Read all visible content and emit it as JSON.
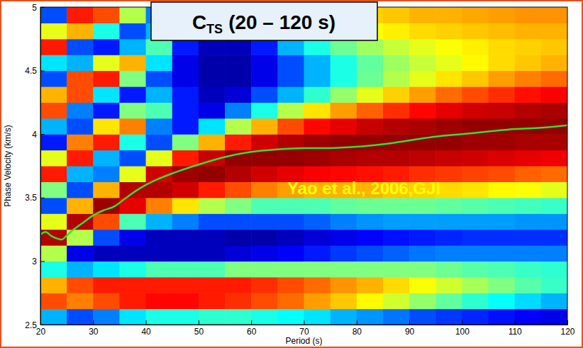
{
  "chart_data": {
    "type": "heatmap",
    "title": {
      "main": "C",
      "subscript": "TS",
      "rest": "(20 – 120 s)"
    },
    "xlabel": "Period (s)",
    "ylabel": "Phase Velocity (km/s)",
    "annotation": "Yao et al., 2006,GJI",
    "xlim": [
      20,
      120
    ],
    "ylim": [
      2.5,
      5
    ],
    "xticks": [
      20,
      30,
      40,
      50,
      60,
      70,
      80,
      90,
      100,
      110,
      120
    ],
    "yticks": [
      2.5,
      3,
      3.5,
      4,
      4.5,
      5
    ],
    "x_bins": [
      20,
      25,
      30,
      35,
      40,
      45,
      50,
      55,
      60,
      65,
      70,
      75,
      80,
      85,
      90,
      95,
      100,
      105,
      110,
      115,
      120
    ],
    "y_bins": [
      2.5,
      2.625,
      2.75,
      2.875,
      3,
      3.125,
      3.25,
      3.375,
      3.5,
      3.625,
      3.75,
      3.875,
      4,
      4.125,
      4.25,
      4.375,
      4.5,
      4.625,
      4.75,
      4.875,
      5
    ],
    "zlim": [
      0,
      1
    ],
    "cells": [
      [
        0.3,
        0.8,
        0.7,
        0.4,
        0.55,
        0.95,
        0.6,
        0.2,
        0.5,
        0.85,
        0.6,
        0.15,
        0.3,
        0.8,
        0.7,
        0.2,
        0.35,
        0.85,
        0.6,
        0.2
      ],
      [
        0.2,
        0.75,
        0.8,
        0.3,
        0.1,
        0.55,
        0.95,
        0.7,
        0.2,
        0.3,
        0.85,
        0.75,
        0.2,
        0.25,
        0.8,
        0.8,
        0.3,
        0.2,
        0.7,
        0.85
      ],
      [
        0.25,
        0.8,
        0.85,
        0.35,
        0.05,
        0.2,
        0.8,
        0.97,
        0.7,
        0.25,
        0.3,
        0.85,
        0.65,
        0.15,
        0.35,
        0.85,
        0.6,
        0.15,
        0.4,
        0.8
      ],
      [
        0.35,
        0.85,
        0.85,
        0.4,
        0.05,
        0.1,
        0.45,
        0.9,
        0.95,
        0.6,
        0.2,
        0.4,
        0.75,
        0.5,
        0.15,
        0.5,
        0.7,
        0.3,
        0.2,
        0.55
      ],
      [
        0.4,
        0.87,
        0.85,
        0.45,
        0.05,
        0.05,
        0.3,
        0.75,
        0.95,
        0.92,
        0.6,
        0.2,
        0.25,
        0.45,
        0.3,
        0.2,
        0.35,
        0.45,
        0.3,
        0.25
      ],
      [
        0.4,
        0.87,
        0.85,
        0.45,
        0.05,
        0.05,
        0.25,
        0.65,
        0.92,
        0.97,
        0.85,
        0.5,
        0.15,
        0.15,
        0.15,
        0.1,
        0.1,
        0.15,
        0.2,
        0.2
      ],
      [
        0.42,
        0.85,
        0.85,
        0.45,
        0.05,
        0.05,
        0.2,
        0.55,
        0.85,
        0.98,
        0.93,
        0.7,
        0.35,
        0.1,
        0.05,
        0.03,
        0.03,
        0.05,
        0.08,
        0.12
      ],
      [
        0.42,
        0.83,
        0.85,
        0.5,
        0.08,
        0.03,
        0.2,
        0.5,
        0.8,
        0.95,
        0.98,
        0.85,
        0.55,
        0.25,
        0.08,
        0.03,
        0.03,
        0.05,
        0.1,
        0.2
      ],
      [
        0.4,
        0.8,
        0.83,
        0.5,
        0.1,
        0.03,
        0.2,
        0.45,
        0.75,
        0.92,
        0.98,
        0.92,
        0.7,
        0.4,
        0.2,
        0.1,
        0.1,
        0.15,
        0.3,
        0.4
      ],
      [
        0.38,
        0.77,
        0.8,
        0.5,
        0.12,
        0.05,
        0.2,
        0.45,
        0.72,
        0.9,
        0.98,
        0.95,
        0.8,
        0.55,
        0.3,
        0.2,
        0.2,
        0.3,
        0.45,
        0.55
      ],
      [
        0.35,
        0.72,
        0.77,
        0.5,
        0.15,
        0.08,
        0.22,
        0.45,
        0.7,
        0.88,
        0.97,
        0.97,
        0.87,
        0.65,
        0.42,
        0.3,
        0.3,
        0.4,
        0.55,
        0.62
      ],
      [
        0.3,
        0.68,
        0.73,
        0.5,
        0.18,
        0.1,
        0.25,
        0.47,
        0.7,
        0.87,
        0.96,
        0.98,
        0.9,
        0.72,
        0.52,
        0.4,
        0.4,
        0.48,
        0.6,
        0.65
      ],
      [
        0.27,
        0.63,
        0.7,
        0.5,
        0.2,
        0.12,
        0.27,
        0.48,
        0.7,
        0.86,
        0.95,
        0.98,
        0.93,
        0.78,
        0.6,
        0.48,
        0.47,
        0.53,
        0.62,
        0.67
      ],
      [
        0.24,
        0.58,
        0.66,
        0.5,
        0.22,
        0.14,
        0.28,
        0.48,
        0.68,
        0.85,
        0.95,
        0.98,
        0.95,
        0.83,
        0.67,
        0.55,
        0.53,
        0.57,
        0.64,
        0.68
      ],
      [
        0.2,
        0.52,
        0.62,
        0.5,
        0.24,
        0.15,
        0.28,
        0.48,
        0.67,
        0.83,
        0.94,
        0.98,
        0.96,
        0.87,
        0.72,
        0.6,
        0.57,
        0.6,
        0.66,
        0.7
      ],
      [
        0.18,
        0.47,
        0.58,
        0.48,
        0.25,
        0.16,
        0.28,
        0.47,
        0.66,
        0.82,
        0.93,
        0.98,
        0.97,
        0.9,
        0.77,
        0.65,
        0.6,
        0.62,
        0.67,
        0.7
      ],
      [
        0.16,
        0.42,
        0.54,
        0.46,
        0.25,
        0.17,
        0.28,
        0.46,
        0.65,
        0.81,
        0.92,
        0.97,
        0.98,
        0.92,
        0.8,
        0.68,
        0.63,
        0.64,
        0.68,
        0.71
      ],
      [
        0.14,
        0.38,
        0.5,
        0.45,
        0.25,
        0.17,
        0.28,
        0.45,
        0.63,
        0.8,
        0.91,
        0.97,
        0.98,
        0.93,
        0.83,
        0.72,
        0.66,
        0.66,
        0.69,
        0.72
      ],
      [
        0.12,
        0.34,
        0.46,
        0.43,
        0.25,
        0.17,
        0.27,
        0.44,
        0.62,
        0.78,
        0.9,
        0.96,
        0.98,
        0.95,
        0.86,
        0.75,
        0.68,
        0.67,
        0.7,
        0.73
      ],
      [
        0.1,
        0.3,
        0.43,
        0.42,
        0.25,
        0.17,
        0.27,
        0.43,
        0.6,
        0.77,
        0.89,
        0.96,
        0.98,
        0.96,
        0.88,
        0.77,
        0.7,
        0.68,
        0.7,
        0.73
      ]
    ],
    "series": [
      {
        "type": "line",
        "color": "#33e033",
        "x": [
          20,
          21,
          22,
          23,
          24,
          25,
          26,
          27,
          28,
          30,
          32,
          34,
          36,
          38,
          40,
          42,
          45,
          50,
          55,
          60,
          65,
          70,
          75,
          80,
          85,
          90,
          95,
          100,
          105,
          110,
          115,
          120
        ],
        "values": [
          3.21,
          3.23,
          3.2,
          3.18,
          3.17,
          3.2,
          3.24,
          3.27,
          3.3,
          3.36,
          3.4,
          3.43,
          3.49,
          3.55,
          3.6,
          3.64,
          3.69,
          3.76,
          3.82,
          3.86,
          3.88,
          3.89,
          3.89,
          3.9,
          3.92,
          3.95,
          3.98,
          4.0,
          4.02,
          4.04,
          4.05,
          4.07
        ]
      }
    ]
  }
}
